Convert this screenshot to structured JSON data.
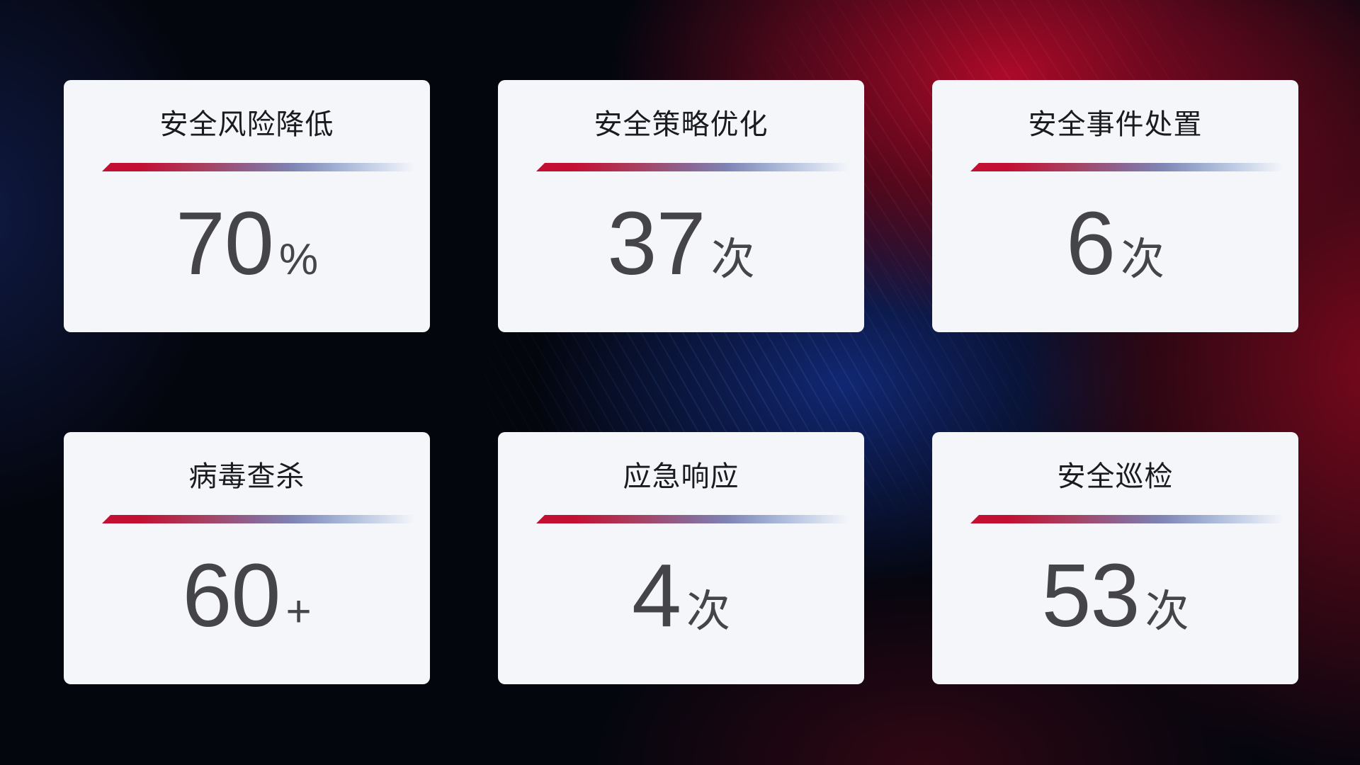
{
  "theme": {
    "card_background": "#f5f6fa",
    "title_color": "#1a1b1f",
    "value_color": "#454549",
    "divider_gradient": [
      "#c31032",
      "#8a6694",
      "#7f84b4",
      "#c3cfe6"
    ],
    "background_navy": "#0a1130",
    "background_blue_glow": "#1c42c4",
    "background_red": "#a50c26"
  },
  "cards": [
    {
      "title": "安全风险降低",
      "value": "70",
      "unit": "%"
    },
    {
      "title": "安全策略优化",
      "value": "37",
      "unit": "次"
    },
    {
      "title": "安全事件处置",
      "value": "6",
      "unit": "次"
    },
    {
      "title": "病毒查杀",
      "value": "60",
      "unit": "+"
    },
    {
      "title": "应急响应",
      "value": "4",
      "unit": "次"
    },
    {
      "title": "安全巡检",
      "value": "53",
      "unit": "次"
    }
  ]
}
